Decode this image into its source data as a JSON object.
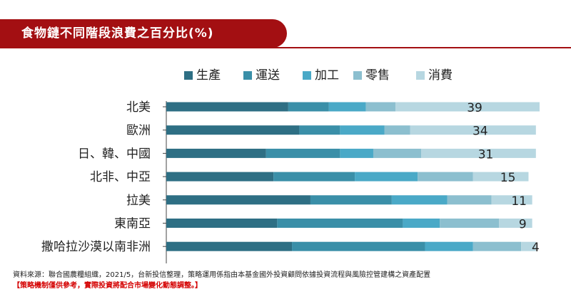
{
  "header": {
    "title": "食物鏈不同階段浪費之百分比(%)"
  },
  "chart_data": {
    "type": "bar",
    "orientation": "horizontal",
    "stacked": true,
    "title": "食物鏈不同階段浪費之百分比(%)",
    "categories": [
      "北美",
      "歐洲",
      "日、韓、中國",
      "北非、中亞",
      "拉美",
      "東南亞",
      "撒哈拉沙漠以南非洲"
    ],
    "series": [
      {
        "name": "生產",
        "color": "#2e6f84",
        "values": [
          33,
          36,
          27,
          29,
          39,
          30,
          34
        ]
      },
      {
        "name": "運送",
        "color": "#3a8fa8",
        "values": [
          11,
          11,
          20,
          22,
          22,
          34,
          36
        ]
      },
      {
        "name": "加工",
        "color": "#4aa9c7",
        "values": [
          10,
          12,
          9,
          17,
          15,
          10,
          13
        ]
      },
      {
        "name": "零售",
        "color": "#8cbfcf",
        "values": [
          8,
          7,
          13,
          15,
          12,
          16,
          13
        ]
      },
      {
        "name": "消費",
        "color": "#b7d7e1",
        "values": [
          39,
          34,
          31,
          15,
          11,
          9,
          4
        ]
      }
    ],
    "data_labels": [
      "39",
      "34",
      "31",
      "15",
      "11",
      "9",
      "4"
    ],
    "legend_position": "top",
    "grid": false
  },
  "footer": {
    "source": "資料來源：聯合國農糧組織，2021/5，台新投信整理，策略運用係指由本基金國外投資顧問依據投資流程與風險控管建構之資產配置",
    "disclaimer": "【策略機制僅供參考，實際投資將配合市場變化動態調整。】"
  }
}
